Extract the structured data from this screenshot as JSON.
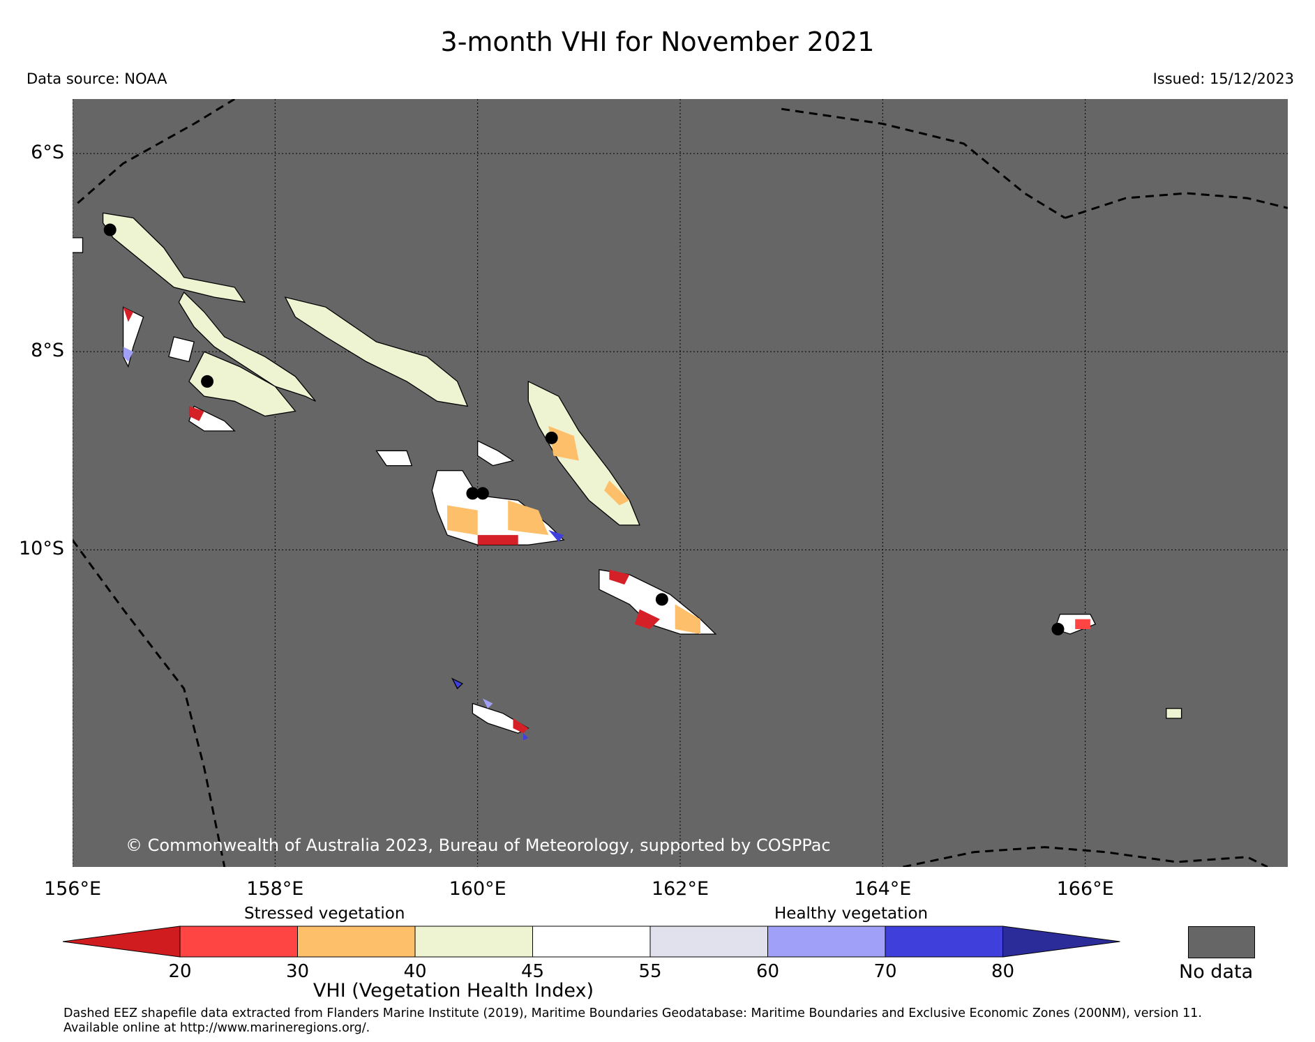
{
  "title": "3-month VHI for November 2021",
  "data_source": "Data source: NOAA",
  "issued": "Issued: 15/12/2023",
  "copyright": "© Commonwealth of Australia 2023, Bureau of Meteorology, supported by COSPPac",
  "map": {
    "extent": {
      "lon_min": 156,
      "lon_max": 168,
      "lat_min": -13.2,
      "lat_max": -5.45
    },
    "background_color": "#666666",
    "lat_ticks": [
      {
        "value": -6,
        "label": "6°S"
      },
      {
        "value": -8,
        "label": "8°S"
      },
      {
        "value": -10,
        "label": "10°S"
      }
    ],
    "lon_ticks": [
      {
        "value": 156,
        "label": "156°E"
      },
      {
        "value": 158,
        "label": "158°E"
      },
      {
        "value": 160,
        "label": "160°E"
      },
      {
        "value": 162,
        "label": "162°E"
      },
      {
        "value": 164,
        "label": "164°E"
      },
      {
        "value": 166,
        "label": "166°E"
      }
    ],
    "gridlines": "dotted",
    "islands": [
      {
        "name_hint": "Bougainville",
        "fill": "#eef3d2",
        "coords": [
          [
            156.3,
            -6.6
          ],
          [
            156.6,
            -6.65
          ],
          [
            156.9,
            -6.95
          ],
          [
            157.1,
            -7.25
          ],
          [
            157.6,
            -7.35
          ],
          [
            157.7,
            -7.5
          ],
          [
            157.4,
            -7.45
          ],
          [
            157.0,
            -7.35
          ],
          [
            156.7,
            -7.1
          ],
          [
            156.4,
            -6.85
          ],
          [
            156.3,
            -6.7
          ]
        ]
      },
      {
        "name_hint": "Choiseul",
        "fill": "#eef3d2",
        "coords": [
          [
            157.1,
            -7.4
          ],
          [
            157.3,
            -7.6
          ],
          [
            157.5,
            -7.85
          ],
          [
            157.9,
            -8.05
          ],
          [
            158.2,
            -8.25
          ],
          [
            158.4,
            -8.5
          ],
          [
            158.3,
            -8.45
          ],
          [
            158.0,
            -8.35
          ],
          [
            157.7,
            -8.15
          ],
          [
            157.4,
            -7.95
          ],
          [
            157.2,
            -7.75
          ],
          [
            157.05,
            -7.5
          ]
        ]
      },
      {
        "name_hint": "Vella Lavella",
        "fill": "#ffffff",
        "coords": [
          [
            156.5,
            -7.55
          ],
          [
            156.7,
            -7.65
          ],
          [
            156.6,
            -7.95
          ],
          [
            156.55,
            -8.15
          ],
          [
            156.5,
            -8.05
          ]
        ]
      },
      {
        "name_hint": "Kolombangara",
        "fill": "#ffffff",
        "coords": [
          [
            157.0,
            -7.85
          ],
          [
            157.2,
            -7.9
          ],
          [
            157.15,
            -8.1
          ],
          [
            156.95,
            -8.05
          ]
        ]
      },
      {
        "name_hint": "New Georgia",
        "fill": "#eef3d2",
        "coords": [
          [
            157.3,
            -8.0
          ],
          [
            157.65,
            -8.15
          ],
          [
            158.0,
            -8.35
          ],
          [
            158.2,
            -8.6
          ],
          [
            157.9,
            -8.65
          ],
          [
            157.6,
            -8.5
          ],
          [
            157.3,
            -8.45
          ],
          [
            157.15,
            -8.3
          ]
        ]
      },
      {
        "name_hint": "Rendova",
        "fill": "#ffffff",
        "coords": [
          [
            157.2,
            -8.55
          ],
          [
            157.5,
            -8.7
          ],
          [
            157.6,
            -8.8
          ],
          [
            157.3,
            -8.8
          ],
          [
            157.15,
            -8.7
          ]
        ]
      },
      {
        "name_hint": "Santa Isabel",
        "fill": "#eef3d2",
        "coords": [
          [
            158.1,
            -7.45
          ],
          [
            158.5,
            -7.55
          ],
          [
            159.0,
            -7.9
          ],
          [
            159.5,
            -8.05
          ],
          [
            159.8,
            -8.3
          ],
          [
            159.9,
            -8.55
          ],
          [
            159.6,
            -8.5
          ],
          [
            159.3,
            -8.3
          ],
          [
            158.9,
            -8.1
          ],
          [
            158.5,
            -7.85
          ],
          [
            158.2,
            -7.65
          ]
        ]
      },
      {
        "name_hint": "Guadalcanal",
        "fill": "#ffffff",
        "coords": [
          [
            159.6,
            -9.2
          ],
          [
            159.85,
            -9.2
          ],
          [
            160.0,
            -9.45
          ],
          [
            160.4,
            -9.5
          ],
          [
            160.7,
            -9.75
          ],
          [
            160.85,
            -9.9
          ],
          [
            160.5,
            -9.95
          ],
          [
            160.0,
            -9.95
          ],
          [
            159.7,
            -9.85
          ],
          [
            159.6,
            -9.6
          ],
          [
            159.55,
            -9.4
          ]
        ]
      },
      {
        "name_hint": "Florida Islands",
        "fill": "#ffffff",
        "coords": [
          [
            160.0,
            -8.9
          ],
          [
            160.2,
            -9.0
          ],
          [
            160.35,
            -9.1
          ],
          [
            160.15,
            -9.15
          ],
          [
            160.0,
            -9.05
          ]
        ]
      },
      {
        "name_hint": "Russell Islands",
        "fill": "#ffffff",
        "coords": [
          [
            159.0,
            -9.0
          ],
          [
            159.3,
            -9.0
          ],
          [
            159.35,
            -9.15
          ],
          [
            159.1,
            -9.15
          ]
        ]
      },
      {
        "name_hint": "Malaita",
        "fill": "#eef3d2",
        "coords": [
          [
            160.5,
            -8.3
          ],
          [
            160.8,
            -8.45
          ],
          [
            161.0,
            -8.8
          ],
          [
            161.3,
            -9.2
          ],
          [
            161.5,
            -9.5
          ],
          [
            161.6,
            -9.75
          ],
          [
            161.4,
            -9.75
          ],
          [
            161.1,
            -9.5
          ],
          [
            160.8,
            -9.1
          ],
          [
            160.6,
            -8.75
          ],
          [
            160.5,
            -8.5
          ]
        ]
      },
      {
        "name_hint": "Makira",
        "fill": "#ffffff",
        "coords": [
          [
            161.2,
            -10.2
          ],
          [
            161.5,
            -10.25
          ],
          [
            161.9,
            -10.45
          ],
          [
            162.2,
            -10.7
          ],
          [
            162.35,
            -10.85
          ],
          [
            162.0,
            -10.85
          ],
          [
            161.7,
            -10.75
          ],
          [
            161.5,
            -10.55
          ],
          [
            161.2,
            -10.4
          ]
        ]
      },
      {
        "name_hint": "Rennell",
        "fill": "#ffffff",
        "coords": [
          [
            159.95,
            -11.55
          ],
          [
            160.25,
            -11.65
          ],
          [
            160.5,
            -11.8
          ],
          [
            160.4,
            -11.85
          ],
          [
            160.1,
            -11.75
          ],
          [
            159.95,
            -11.65
          ]
        ]
      },
      {
        "name_hint": "Bellona",
        "fill": "#3f3fdc",
        "coords": [
          [
            159.75,
            -11.3
          ],
          [
            159.85,
            -11.35
          ],
          [
            159.8,
            -11.4
          ]
        ]
      },
      {
        "name_hint": "Nendo",
        "fill": "#ffffff",
        "coords": [
          [
            165.75,
            -10.65
          ],
          [
            166.05,
            -10.65
          ],
          [
            166.1,
            -10.75
          ],
          [
            165.85,
            -10.85
          ],
          [
            165.7,
            -10.8
          ]
        ]
      },
      {
        "name_hint": "Vanikoro",
        "fill": "#eef3d2",
        "coords": [
          [
            166.8,
            -11.6
          ],
          [
            166.95,
            -11.6
          ],
          [
            166.95,
            -11.7
          ],
          [
            166.8,
            -11.7
          ]
        ]
      },
      {
        "name_hint": "Shortland",
        "fill": "#ffffff",
        "coords": [
          [
            155.9,
            -6.85
          ],
          [
            156.1,
            -6.85
          ],
          [
            156.1,
            -7.0
          ],
          [
            155.9,
            -7.0
          ]
        ]
      }
    ],
    "stress_patches": [
      {
        "fill": "#fdbf69",
        "coords": [
          [
            160.3,
            -9.5
          ],
          [
            160.6,
            -9.6
          ],
          [
            160.7,
            -9.85
          ],
          [
            160.3,
            -9.8
          ]
        ]
      },
      {
        "fill": "#fdbf69",
        "coords": [
          [
            159.7,
            -9.55
          ],
          [
            160.0,
            -9.6
          ],
          [
            160.0,
            -9.85
          ],
          [
            159.7,
            -9.8
          ]
        ]
      },
      {
        "fill": "#d62027",
        "coords": [
          [
            160.0,
            -9.85
          ],
          [
            160.4,
            -9.85
          ],
          [
            160.4,
            -9.95
          ],
          [
            160.0,
            -9.95
          ]
        ]
      },
      {
        "fill": "#fdbf69",
        "coords": [
          [
            160.7,
            -8.75
          ],
          [
            160.95,
            -8.85
          ],
          [
            161.0,
            -9.1
          ],
          [
            160.75,
            -9.05
          ]
        ]
      },
      {
        "fill": "#fdbf69",
        "coords": [
          [
            161.3,
            -9.3
          ],
          [
            161.5,
            -9.5
          ],
          [
            161.4,
            -9.55
          ],
          [
            161.25,
            -9.4
          ]
        ]
      },
      {
        "fill": "#fdbf69",
        "coords": [
          [
            161.95,
            -10.55
          ],
          [
            162.2,
            -10.7
          ],
          [
            162.2,
            -10.85
          ],
          [
            161.95,
            -10.8
          ]
        ]
      },
      {
        "fill": "#d62027",
        "coords": [
          [
            161.6,
            -10.6
          ],
          [
            161.8,
            -10.7
          ],
          [
            161.7,
            -10.8
          ],
          [
            161.55,
            -10.75
          ]
        ]
      },
      {
        "fill": "#d62027",
        "coords": [
          [
            161.3,
            -10.2
          ],
          [
            161.5,
            -10.25
          ],
          [
            161.45,
            -10.35
          ],
          [
            161.3,
            -10.3
          ]
        ]
      },
      {
        "fill": "#ff4444",
        "coords": [
          [
            165.9,
            -10.7
          ],
          [
            166.05,
            -10.7
          ],
          [
            166.05,
            -10.8
          ],
          [
            165.9,
            -10.8
          ]
        ]
      },
      {
        "fill": "#d62027",
        "coords": [
          [
            157.15,
            -8.55
          ],
          [
            157.3,
            -8.6
          ],
          [
            157.25,
            -8.7
          ],
          [
            157.15,
            -8.65
          ]
        ]
      },
      {
        "fill": "#d62027",
        "coords": [
          [
            156.5,
            -7.55
          ],
          [
            156.6,
            -7.6
          ],
          [
            156.55,
            -7.7
          ]
        ]
      },
      {
        "fill": "#d62027",
        "coords": [
          [
            160.35,
            -11.7
          ],
          [
            160.5,
            -11.8
          ],
          [
            160.45,
            -11.85
          ],
          [
            160.35,
            -11.8
          ]
        ]
      },
      {
        "fill": "#a0a0f8",
        "coords": [
          [
            156.5,
            -7.95
          ],
          [
            156.6,
            -8.0
          ],
          [
            156.55,
            -8.1
          ],
          [
            156.5,
            -8.05
          ]
        ]
      },
      {
        "fill": "#3f3fdc",
        "coords": [
          [
            160.7,
            -9.8
          ],
          [
            160.85,
            -9.85
          ],
          [
            160.8,
            -9.92
          ]
        ]
      },
      {
        "fill": "#a0a0f8",
        "coords": [
          [
            160.05,
            -11.5
          ],
          [
            160.15,
            -11.55
          ],
          [
            160.1,
            -11.6
          ]
        ]
      },
      {
        "fill": "#3f3fdc",
        "coords": [
          [
            160.45,
            -11.85
          ],
          [
            160.5,
            -11.9
          ],
          [
            160.45,
            -11.92
          ]
        ]
      }
    ],
    "towns": [
      {
        "lon": 156.37,
        "lat": -6.77
      },
      {
        "lon": 157.33,
        "lat": -8.3
      },
      {
        "lon": 159.95,
        "lat": -9.43
      },
      {
        "lon": 160.05,
        "lat": -9.43
      },
      {
        "lon": 160.73,
        "lat": -8.87
      },
      {
        "lon": 161.82,
        "lat": -10.5
      },
      {
        "lon": 165.73,
        "lat": -10.8
      }
    ],
    "eez_lines": [
      [
        [
          156.05,
          -6.5
        ],
        [
          156.5,
          -6.1
        ],
        [
          157.2,
          -5.7
        ],
        [
          157.6,
          -5.45
        ]
      ],
      [
        [
          156.0,
          -9.9
        ],
        [
          156.5,
          -10.6
        ],
        [
          157.1,
          -11.4
        ],
        [
          157.3,
          -12.2
        ],
        [
          157.5,
          -13.2
        ]
      ],
      [
        [
          163.0,
          -5.55
        ],
        [
          164.0,
          -5.7
        ],
        [
          164.8,
          -5.9
        ],
        [
          165.4,
          -6.4
        ],
        [
          165.8,
          -6.65
        ]
      ],
      [
        [
          165.8,
          -6.65
        ],
        [
          166.4,
          -6.45
        ],
        [
          167.0,
          -6.4
        ],
        [
          167.6,
          -6.45
        ],
        [
          168.0,
          -6.55
        ]
      ],
      [
        [
          164.2,
          -13.2
        ],
        [
          164.9,
          -13.05
        ],
        [
          165.6,
          -13.0
        ],
        [
          166.2,
          -13.05
        ],
        [
          166.9,
          -13.15
        ],
        [
          167.6,
          -13.1
        ],
        [
          167.8,
          -13.2
        ]
      ]
    ]
  },
  "colorbar": {
    "label": "VHI (Vegetation Health Index)",
    "stressed_label": "Stressed vegetation",
    "healthy_label": "Healthy vegetation",
    "under_color": "#d01c1f",
    "over_color": "#2b2b99",
    "bins": [
      {
        "from": 20,
        "to": 30,
        "color": "#ff4444"
      },
      {
        "from": 30,
        "to": 40,
        "color": "#fdbf69"
      },
      {
        "from": 40,
        "to": 45,
        "color": "#eef3d2"
      },
      {
        "from": 45,
        "to": 55,
        "color": "#ffffff"
      },
      {
        "from": 55,
        "to": 60,
        "color": "#e1e1ee"
      },
      {
        "from": 60,
        "to": 70,
        "color": "#a0a0f8"
      },
      {
        "from": 70,
        "to": 80,
        "color": "#3f3fdc"
      }
    ],
    "tick_labels": [
      "20",
      "30",
      "40",
      "45",
      "55",
      "60",
      "70",
      "80"
    ],
    "no_data_label": "No data",
    "no_data_color": "#666666"
  },
  "footnote": "Dashed EEZ shapefile data extracted from Flanders Marine Institute (2019), Maritime Boundaries Geodatabase: Maritime Boundaries and Exclusive Economic Zones (200NM), version 11.\nAvailable online at http://www.marineregions.org/."
}
